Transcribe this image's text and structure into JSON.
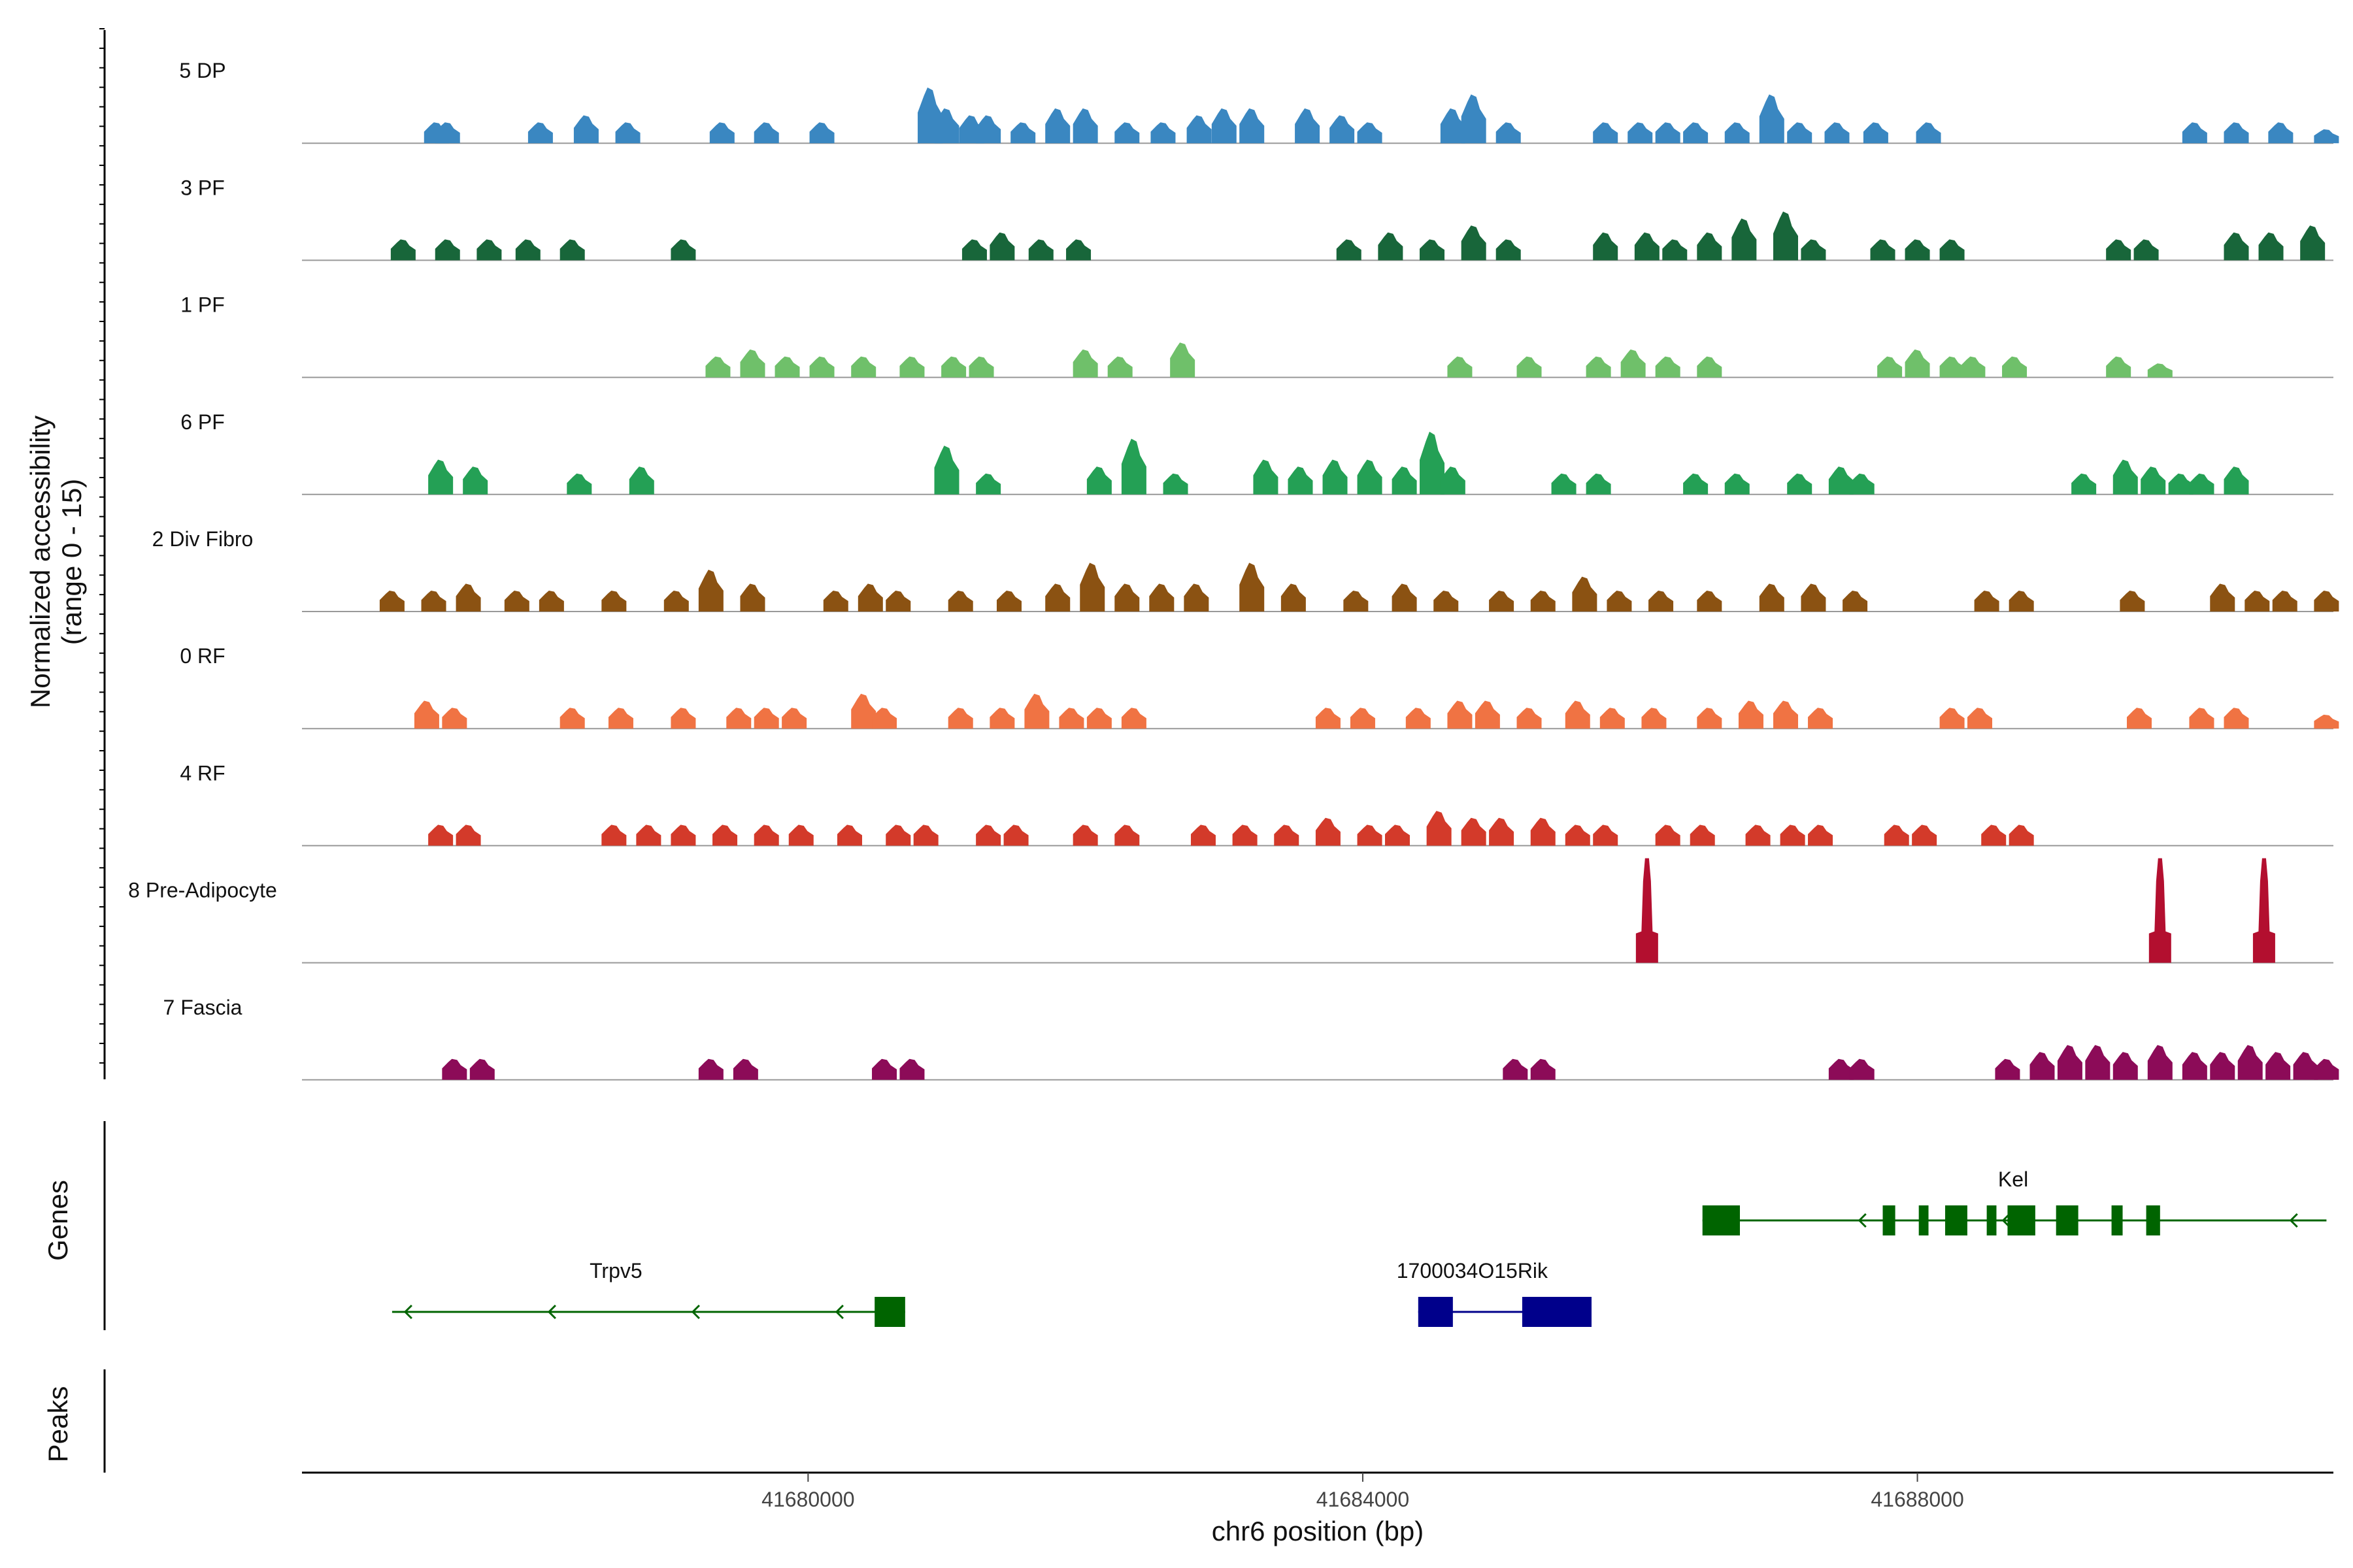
{
  "chart_data": {
    "type": "area",
    "title": "",
    "xlabel": "chr6 position (bp)",
    "ylabel": "Normalized accessibility (range 0 - 15)",
    "ylabel_lines": [
      "Normalized accessibility",
      "(range 0 - 15)"
    ],
    "ylim": [
      0,
      15
    ],
    "xlim": [
      41676350,
      41691000
    ],
    "x_ticks": [
      41680000,
      41684000,
      41688000
    ],
    "x_tick_labels": [
      "41680000",
      "41684000",
      "41688000"
    ],
    "panel_titles": {
      "genes": "Genes",
      "peaks": "Peaks"
    },
    "series": [
      {
        "name": "5 DP",
        "color": "#3a87c1",
        "peaks": [
          [
            41677320,
            3
          ],
          [
            41677400,
            3
          ],
          [
            41678070,
            3
          ],
          [
            41678400,
            4
          ],
          [
            41678700,
            3
          ],
          [
            41679380,
            3
          ],
          [
            41679700,
            3
          ],
          [
            41680100,
            3
          ],
          [
            41680880,
            8
          ],
          [
            41681000,
            5
          ],
          [
            41681180,
            4
          ],
          [
            41681300,
            4
          ],
          [
            41681550,
            3
          ],
          [
            41681800,
            5
          ],
          [
            41682000,
            5
          ],
          [
            41682300,
            3
          ],
          [
            41682560,
            3
          ],
          [
            41682820,
            4
          ],
          [
            41683000,
            5
          ],
          [
            41683200,
            5
          ],
          [
            41683600,
            5
          ],
          [
            41683850,
            4
          ],
          [
            41684050,
            3
          ],
          [
            41684650,
            5
          ],
          [
            41684800,
            7
          ],
          [
            41685050,
            3
          ],
          [
            41685750,
            3
          ],
          [
            41686000,
            3
          ],
          [
            41686200,
            3
          ],
          [
            41686400,
            3
          ],
          [
            41686700,
            3
          ],
          [
            41686950,
            7
          ],
          [
            41687150,
            3
          ],
          [
            41687420,
            3
          ],
          [
            41687700,
            3
          ],
          [
            41688080,
            3
          ],
          [
            41690000,
            3
          ],
          [
            41690300,
            3
          ],
          [
            41690620,
            3
          ],
          [
            41690950,
            2
          ]
        ]
      },
      {
        "name": "3 PF",
        "color": "#18663a",
        "peaks": [
          [
            41677080,
            3
          ],
          [
            41677400,
            3
          ],
          [
            41677700,
            3
          ],
          [
            41677980,
            3
          ],
          [
            41678300,
            3
          ],
          [
            41679100,
            3
          ],
          [
            41681200,
            3
          ],
          [
            41681400,
            4
          ],
          [
            41681680,
            3
          ],
          [
            41681950,
            3
          ],
          [
            41683900,
            3
          ],
          [
            41684200,
            4
          ],
          [
            41684500,
            3
          ],
          [
            41684800,
            5
          ],
          [
            41685050,
            3
          ],
          [
            41685750,
            4
          ],
          [
            41686050,
            4
          ],
          [
            41686250,
            3
          ],
          [
            41686500,
            4
          ],
          [
            41686750,
            6
          ],
          [
            41687050,
            7
          ],
          [
            41687250,
            3
          ],
          [
            41687750,
            3
          ],
          [
            41688000,
            3
          ],
          [
            41688250,
            3
          ],
          [
            41689450,
            3
          ],
          [
            41689650,
            3
          ],
          [
            41690300,
            4
          ],
          [
            41690550,
            4
          ],
          [
            41690850,
            5
          ]
        ]
      },
      {
        "name": "1 PF",
        "color": "#6fc06a",
        "peaks": [
          [
            41679350,
            3
          ],
          [
            41679600,
            4
          ],
          [
            41679850,
            3
          ],
          [
            41680100,
            3
          ],
          [
            41680400,
            3
          ],
          [
            41680750,
            3
          ],
          [
            41681050,
            3
          ],
          [
            41681250,
            3
          ],
          [
            41682000,
            4
          ],
          [
            41682250,
            3
          ],
          [
            41682700,
            5
          ],
          [
            41684700,
            3
          ],
          [
            41685200,
            3
          ],
          [
            41685700,
            3
          ],
          [
            41685950,
            4
          ],
          [
            41686200,
            3
          ],
          [
            41686500,
            3
          ],
          [
            41687800,
            3
          ],
          [
            41688000,
            4
          ],
          [
            41688250,
            3
          ],
          [
            41688400,
            3
          ],
          [
            41688700,
            3
          ],
          [
            41689450,
            3
          ],
          [
            41689750,
            2
          ]
        ]
      },
      {
        "name": "6 PF",
        "color": "#24a055",
        "peaks": [
          [
            41677350,
            5
          ],
          [
            41677600,
            4
          ],
          [
            41678350,
            3
          ],
          [
            41678800,
            4
          ],
          [
            41681000,
            7
          ],
          [
            41681300,
            3
          ],
          [
            41682100,
            4
          ],
          [
            41682350,
            8
          ],
          [
            41682650,
            3
          ],
          [
            41683300,
            5
          ],
          [
            41683550,
            4
          ],
          [
            41683800,
            5
          ],
          [
            41684050,
            5
          ],
          [
            41684300,
            4
          ],
          [
            41684500,
            9
          ],
          [
            41684650,
            4
          ],
          [
            41685450,
            3
          ],
          [
            41685700,
            3
          ],
          [
            41686400,
            3
          ],
          [
            41686700,
            3
          ],
          [
            41687150,
            3
          ],
          [
            41687450,
            4
          ],
          [
            41687600,
            3
          ],
          [
            41689200,
            3
          ],
          [
            41689500,
            5
          ],
          [
            41689700,
            4
          ],
          [
            41689900,
            3
          ],
          [
            41690050,
            3
          ],
          [
            41690300,
            4
          ]
        ]
      },
      {
        "name": "2 Div Fibro",
        "color": "#8b5212",
        "peaks": [
          [
            41677000,
            3
          ],
          [
            41677300,
            3
          ],
          [
            41677550,
            4
          ],
          [
            41677900,
            3
          ],
          [
            41678150,
            3
          ],
          [
            41678600,
            3
          ],
          [
            41679050,
            3
          ],
          [
            41679300,
            6
          ],
          [
            41679600,
            4
          ],
          [
            41680200,
            3
          ],
          [
            41680450,
            4
          ],
          [
            41680650,
            3
          ],
          [
            41681100,
            3
          ],
          [
            41681450,
            3
          ],
          [
            41681800,
            4
          ],
          [
            41682050,
            7
          ],
          [
            41682300,
            4
          ],
          [
            41682550,
            4
          ],
          [
            41682800,
            4
          ],
          [
            41683200,
            7
          ],
          [
            41683500,
            4
          ],
          [
            41683950,
            3
          ],
          [
            41684300,
            4
          ],
          [
            41684600,
            3
          ],
          [
            41685000,
            3
          ],
          [
            41685300,
            3
          ],
          [
            41685600,
            5
          ],
          [
            41685850,
            3
          ],
          [
            41686150,
            3
          ],
          [
            41686500,
            3
          ],
          [
            41686950,
            4
          ],
          [
            41687250,
            4
          ],
          [
            41687550,
            3
          ],
          [
            41688500,
            3
          ],
          [
            41688750,
            3
          ],
          [
            41689550,
            3
          ],
          [
            41690200,
            4
          ],
          [
            41690450,
            3
          ],
          [
            41690650,
            3
          ],
          [
            41690950,
            3
          ]
        ]
      },
      {
        "name": "0 RF",
        "color": "#f07343",
        "peaks": [
          [
            41677250,
            4
          ],
          [
            41677450,
            3
          ],
          [
            41678300,
            3
          ],
          [
            41678650,
            3
          ],
          [
            41679100,
            3
          ],
          [
            41679500,
            3
          ],
          [
            41679700,
            3
          ],
          [
            41679900,
            3
          ],
          [
            41680400,
            5
          ],
          [
            41680550,
            3
          ],
          [
            41681100,
            3
          ],
          [
            41681400,
            3
          ],
          [
            41681650,
            5
          ],
          [
            41681900,
            3
          ],
          [
            41682100,
            3
          ],
          [
            41682350,
            3
          ],
          [
            41683750,
            3
          ],
          [
            41684000,
            3
          ],
          [
            41684400,
            3
          ],
          [
            41684700,
            4
          ],
          [
            41684900,
            4
          ],
          [
            41685200,
            3
          ],
          [
            41685550,
            4
          ],
          [
            41685800,
            3
          ],
          [
            41686100,
            3
          ],
          [
            41686500,
            3
          ],
          [
            41686800,
            4
          ],
          [
            41687050,
            4
          ],
          [
            41687300,
            3
          ],
          [
            41688250,
            3
          ],
          [
            41688450,
            3
          ],
          [
            41689600,
            3
          ],
          [
            41690050,
            3
          ],
          [
            41690300,
            3
          ],
          [
            41690950,
            2
          ]
        ]
      },
      {
        "name": "4 RF",
        "color": "#d33a2a",
        "peaks": [
          [
            41677350,
            3
          ],
          [
            41677550,
            3
          ],
          [
            41678600,
            3
          ],
          [
            41678850,
            3
          ],
          [
            41679100,
            3
          ],
          [
            41679400,
            3
          ],
          [
            41679700,
            3
          ],
          [
            41679950,
            3
          ],
          [
            41680300,
            3
          ],
          [
            41680650,
            3
          ],
          [
            41680850,
            3
          ],
          [
            41681300,
            3
          ],
          [
            41681500,
            3
          ],
          [
            41682000,
            3
          ],
          [
            41682300,
            3
          ],
          [
            41682850,
            3
          ],
          [
            41683150,
            3
          ],
          [
            41683450,
            3
          ],
          [
            41683750,
            4
          ],
          [
            41684050,
            3
          ],
          [
            41684250,
            3
          ],
          [
            41684550,
            5
          ],
          [
            41684800,
            4
          ],
          [
            41685000,
            4
          ],
          [
            41685300,
            4
          ],
          [
            41685550,
            3
          ],
          [
            41685750,
            3
          ],
          [
            41686200,
            3
          ],
          [
            41686450,
            3
          ],
          [
            41686850,
            3
          ],
          [
            41687100,
            3
          ],
          [
            41687300,
            3
          ],
          [
            41687850,
            3
          ],
          [
            41688050,
            3
          ],
          [
            41688550,
            3
          ],
          [
            41688750,
            3
          ]
        ]
      },
      {
        "name": "8 Pre-Adipocyte",
        "color": "#b30f2f",
        "peaks": [
          [
            41686050,
            15
          ],
          [
            41689750,
            15
          ],
          [
            41690500,
            15
          ]
        ]
      },
      {
        "name": "7 Fascia",
        "color": "#8c0b58",
        "peaks": [
          [
            41677450,
            3
          ],
          [
            41677650,
            3
          ],
          [
            41679300,
            3
          ],
          [
            41679550,
            3
          ],
          [
            41680550,
            3
          ],
          [
            41680750,
            3
          ],
          [
            41685100,
            3
          ],
          [
            41685300,
            3
          ],
          [
            41687450,
            3
          ],
          [
            41687600,
            3
          ],
          [
            41688650,
            3
          ],
          [
            41688900,
            4
          ],
          [
            41689100,
            5
          ],
          [
            41689300,
            5
          ],
          [
            41689500,
            4
          ],
          [
            41689750,
            5
          ],
          [
            41690000,
            4
          ],
          [
            41690200,
            4
          ],
          [
            41690400,
            5
          ],
          [
            41690600,
            4
          ],
          [
            41690800,
            4
          ],
          [
            41690950,
            3
          ]
        ]
      }
    ],
    "genes": [
      {
        "name": "Trpv5",
        "start": 41677000,
        "end": 41680700,
        "strand": "-",
        "color": "#006400",
        "exons": [
          [
            41680480,
            41680700
          ]
        ]
      },
      {
        "name": "1700034O15Rik",
        "start": 41684400,
        "end": 41685650,
        "strand": "+",
        "color": "#00008b",
        "exons": [
          [
            41684400,
            41684650
          ],
          [
            41685150,
            41685650
          ]
        ]
      },
      {
        "name": "Kel",
        "start": 41686450,
        "end": 41690950,
        "strand": "-",
        "color": "#006400",
        "exons": [
          [
            41686450,
            41686720
          ],
          [
            41687750,
            41687840
          ],
          [
            41688010,
            41688080
          ],
          [
            41688200,
            41688360
          ],
          [
            41688500,
            41688570
          ],
          [
            41688650,
            41688850
          ],
          [
            41689000,
            41689160
          ],
          [
            41689400,
            41689480
          ],
          [
            41689650,
            41689750
          ]
        ]
      }
    ],
    "peak_regions": []
  }
}
